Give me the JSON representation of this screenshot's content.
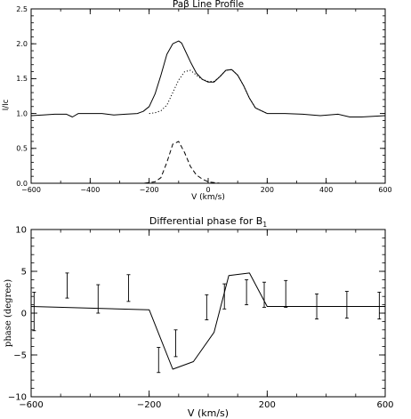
{
  "chart_data": [
    {
      "type": "line",
      "title": "Paβ Line Profile",
      "xlabel": "V (km/s)",
      "ylabel": "I/Ic",
      "xlim": [
        -600,
        600
      ],
      "ylim": [
        0.0,
        2.5
      ],
      "xticks": [
        -600,
        -400,
        -200,
        0,
        200,
        400,
        600
      ],
      "xtick_labels": [
        "−600",
        "−400",
        "−200",
        "0",
        "200",
        "400",
        "600"
      ],
      "yticks": [
        0.0,
        0.5,
        1.0,
        1.5,
        2.0,
        2.5
      ],
      "ytick_labels": [
        "0.0",
        "0.5",
        "1.0",
        "1.5",
        "2.0",
        "2.5"
      ],
      "grid": false,
      "series": [
        {
          "style": "solid",
          "x": [
            -600,
            -560,
            -520,
            -480,
            -460,
            -440,
            -400,
            -360,
            -320,
            -280,
            -240,
            -220,
            -200,
            -180,
            -160,
            -140,
            -120,
            -100,
            -90,
            -80,
            -60,
            -40,
            -20,
            0,
            20,
            40,
            60,
            80,
            100,
            120,
            140,
            160,
            200,
            260,
            320,
            380,
            440,
            480,
            520,
            560,
            600
          ],
          "y": [
            0.97,
            0.98,
            0.99,
            0.99,
            0.95,
            1.0,
            1.0,
            1.0,
            0.98,
            0.99,
            1.0,
            1.03,
            1.1,
            1.28,
            1.55,
            1.85,
            2.0,
            2.04,
            2.01,
            1.92,
            1.74,
            1.58,
            1.49,
            1.45,
            1.45,
            1.53,
            1.62,
            1.63,
            1.55,
            1.4,
            1.22,
            1.08,
            1.0,
            1.0,
            0.99,
            0.97,
            0.99,
            0.95,
            0.95,
            0.96,
            0.97
          ]
        },
        {
          "style": "dotted",
          "x": [
            -200,
            -180,
            -160,
            -140,
            -120,
            -100,
            -80,
            -60,
            -40,
            -20,
            0,
            20,
            40,
            60,
            80,
            100,
            120,
            140,
            160,
            200
          ],
          "y": [
            1.0,
            1.01,
            1.04,
            1.12,
            1.3,
            1.48,
            1.6,
            1.62,
            1.55,
            1.49,
            1.46,
            1.46,
            1.53,
            1.62,
            1.63,
            1.55,
            1.4,
            1.22,
            1.08,
            1.0
          ]
        },
        {
          "style": "dashed",
          "x": [
            -240,
            -220,
            -200,
            -180,
            -160,
            -140,
            -120,
            -100,
            -80,
            -60,
            -40,
            -20,
            0,
            20,
            40
          ],
          "y": [
            0.0,
            0.0,
            0.01,
            0.02,
            0.08,
            0.3,
            0.56,
            0.6,
            0.44,
            0.24,
            0.12,
            0.06,
            0.02,
            0.01,
            0.0
          ]
        }
      ]
    },
    {
      "type": "line",
      "title": "Differential phase for B",
      "title_subscript": "1",
      "xlabel": "V  (km/s)",
      "ylabel": "phase (degree)",
      "xlim": [
        -600,
        600
      ],
      "ylim": [
        -10,
        10
      ],
      "xticks": [
        -600,
        -200,
        200,
        600
      ],
      "xtick_labels": [
        "−600",
        "−200",
        "200",
        "600"
      ],
      "yticks": [
        -10,
        -5,
        0,
        5,
        10
      ],
      "ytick_labels": [
        "−10",
        "−5",
        "0",
        "5",
        "10"
      ],
      "grid": false,
      "series": [
        {
          "style": "solid",
          "x": [
            -600,
            -200,
            -120,
            -50,
            20,
            70,
            140,
            200,
            600
          ],
          "y": [
            0.8,
            0.4,
            -6.7,
            -5.8,
            -2.3,
            4.5,
            4.8,
            0.8,
            0.8
          ]
        }
      ],
      "errorbars": {
        "x": [
          -590,
          -478,
          -373,
          -270,
          -168,
          -110,
          -5,
          55,
          130,
          190,
          263,
          368,
          470,
          580
        ],
        "y": [
          0.2,
          3.3,
          1.7,
          3.0,
          -5.6,
          -3.6,
          0.7,
          2.0,
          2.5,
          2.2,
          2.3,
          0.8,
          1.0,
          0.9
        ],
        "err": [
          2.3,
          1.5,
          1.7,
          1.6,
          1.5,
          1.6,
          1.5,
          1.5,
          1.5,
          1.5,
          1.6,
          1.5,
          1.6,
          1.6
        ]
      }
    }
  ]
}
